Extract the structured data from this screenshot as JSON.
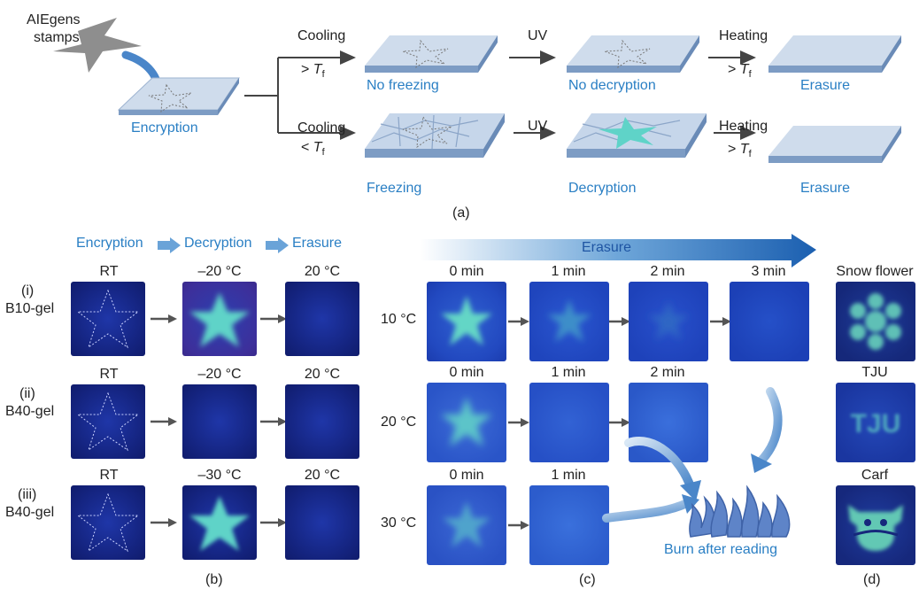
{
  "part_a": {
    "stamp_label_line1": "AIEgens",
    "stamp_label_line2": "stamps",
    "encryption": "Encryption",
    "upper": {
      "cooling": "Cooling",
      "cond_sign": "> ",
      "cond_T": "T",
      "cond_sub": "f",
      "step1": "No freezing",
      "uv": "UV",
      "step2": "No decryption",
      "heating": "Heating",
      "heat_sign": "> ",
      "heat_T": "T",
      "heat_sub": "f",
      "step3": "Erasure"
    },
    "lower": {
      "cooling": "Cooling",
      "cond_sign": "< ",
      "cond_T": "T",
      "cond_sub": "f",
      "step1": "Freezing",
      "uv": "UV",
      "step2": "Decryption",
      "heating": "Heating",
      "heat_sign": "> ",
      "heat_T": "T",
      "heat_sub": "f",
      "step3": "Erasure"
    },
    "caption": "(a)"
  },
  "part_b": {
    "header": [
      "Encryption",
      "Decryption",
      "Erasure"
    ],
    "rows": [
      {
        "roman": "(i)",
        "name": "B10-gel",
        "temps": [
          "RT",
          "–20 °C",
          "20 °C"
        ]
      },
      {
        "roman": "(ii)",
        "name": "B40-gel",
        "temps": [
          "RT",
          "–20 °C",
          "20 °C"
        ]
      },
      {
        "roman": "(iii)",
        "name": "B40-gel",
        "temps": [
          "RT",
          "–30 °C",
          "20 °C"
        ]
      }
    ],
    "caption": "(b)"
  },
  "part_c": {
    "arrow_label": "Erasure",
    "rows": [
      {
        "temp": "10 °C",
        "times": [
          "0 min",
          "1 min",
          "2 min",
          "3 min"
        ]
      },
      {
        "temp": "20 °C",
        "times": [
          "0 min",
          "1 min",
          "2 min"
        ]
      },
      {
        "temp": "30 °C",
        "times": [
          "0 min",
          "1 min"
        ]
      }
    ],
    "burn_label": "Burn after reading",
    "caption": "(c)"
  },
  "part_d": {
    "labels": [
      "Snow flower",
      "TJU",
      "Carf"
    ],
    "tju_text": "TJU",
    "caption": "(d)"
  },
  "colors": {
    "accent_blue": "#2a7fc4",
    "gel_blue": "#13237f",
    "glow_cyan": "#5fd3c8",
    "slab_top": "#c9d9ec",
    "slab_side": "#7d9cc4"
  }
}
